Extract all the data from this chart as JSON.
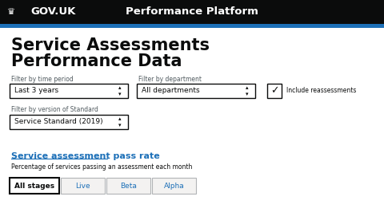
{
  "bg_color": "#ffffff",
  "header_bg": "#0b0c0c",
  "header_text_govuk": "GOV.UK",
  "header_text_platform": "Performance Platform",
  "header_text_color": "#ffffff",
  "blue_bar_color": "#1d70b8",
  "title_line1": "Service Assessments",
  "title_line2": "Performance Data",
  "title_color": "#0b0c0c",
  "filter_label1": "Filter by time period",
  "filter_label2": "Filter by department",
  "filter_label3": "Filter by version of Standard",
  "dropdown1": "Last 3 years",
  "dropdown2": "All departments",
  "dropdown3": "Service Standard (2019)",
  "checkbox_label": "Include reassessments",
  "link_text": "Service assessment pass rate",
  "link_color": "#1d70b8",
  "subtitle_text": "Percentage of services passing an assessment each month",
  "tab_labels": [
    "All stages",
    "Live",
    "Beta",
    "Alpha"
  ],
  "tab_active": 0,
  "label_color": "#505a5f",
  "border_color": "#0b0c0c",
  "tab_border_color": "#b1b4b6",
  "font_size_header": 9.5,
  "font_size_title": 15,
  "font_size_filter": 5.5,
  "font_size_dropdown": 6.5,
  "font_size_link": 8,
  "font_size_subtitle": 5.5,
  "font_size_tab": 6.5
}
